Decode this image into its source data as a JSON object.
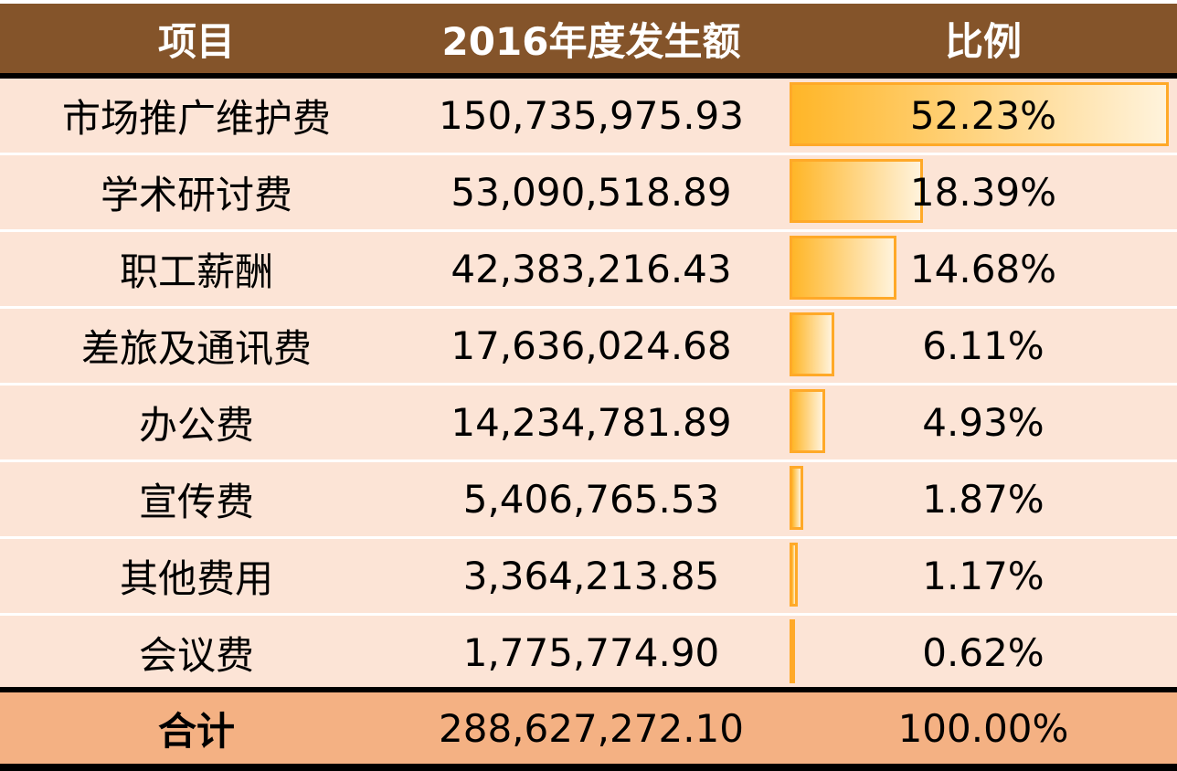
{
  "chart_data": {
    "type": "table",
    "columns": [
      "项目",
      "2016年度发生额",
      "比例"
    ],
    "rows": [
      {
        "item": "市场推广维护费",
        "amount": "150,735,975.93",
        "ratio": "52.23%",
        "ratio_value": 52.23
      },
      {
        "item": "学术研讨费",
        "amount": "53,090,518.89",
        "ratio": "18.39%",
        "ratio_value": 18.39
      },
      {
        "item": "职工薪酬",
        "amount": "42,383,216.43",
        "ratio": "14.68%",
        "ratio_value": 14.68
      },
      {
        "item": "差旅及通讯费",
        "amount": "17,636,024.68",
        "ratio": "6.11%",
        "ratio_value": 6.11
      },
      {
        "item": "办公费",
        "amount": "14,234,781.89",
        "ratio": "4.93%",
        "ratio_value": 4.93
      },
      {
        "item": "宣传费",
        "amount": "5,406,765.53",
        "ratio": "1.87%",
        "ratio_value": 1.87
      },
      {
        "item": "其他费用",
        "amount": "3,364,213.85",
        "ratio": "1.17%",
        "ratio_value": 1.17
      },
      {
        "item": "会议费",
        "amount": "1,775,774.90",
        "ratio": "0.62%",
        "ratio_value": 0.62
      }
    ],
    "total": {
      "item": "合计",
      "amount": "288,627,272.10",
      "ratio": "100.00%"
    },
    "data_bars": {
      "column": "比例",
      "scale_max": 52.23,
      "color": "#FFA928"
    },
    "colors": {
      "header": "#84542A",
      "row": "#FCE4D6",
      "total": "#F4B183"
    }
  }
}
